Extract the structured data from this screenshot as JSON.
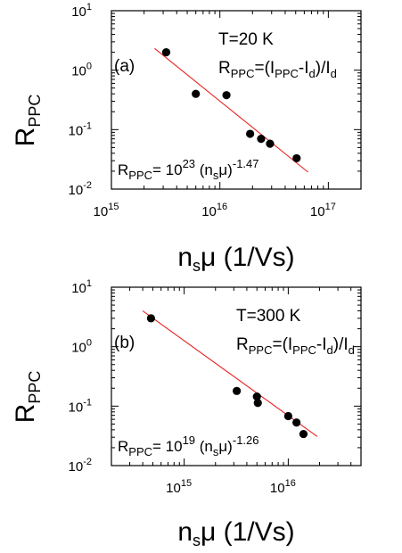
{
  "chart_data": [
    {
      "type": "scatter",
      "panel_label": "(a)",
      "xlabel": {
        "main": "n",
        "sub": "s",
        "rest": "μ (1/Vs)"
      },
      "ylabel": {
        "main": "R",
        "sub": "PPC"
      },
      "x_scale": "log",
      "y_scale": "log",
      "xlim": [
        1000000000000000.0,
        2e+17
      ],
      "ylim": [
        0.01,
        10
      ],
      "x_ticks": [
        {
          "value": 1000000000000000.0,
          "base": "10",
          "exp": "15"
        },
        {
          "value": 1e+16,
          "base": "10",
          "exp": "16"
        },
        {
          "value": 1e+17,
          "base": "10",
          "exp": "17"
        }
      ],
      "y_ticks": [
        {
          "value": 10,
          "base": "10",
          "exp": "1"
        },
        {
          "value": 1,
          "base": "10",
          "exp": "0"
        },
        {
          "value": 0.1,
          "base": "10",
          "exp": "-1"
        },
        {
          "value": 0.01,
          "base": "10",
          "exp": "-2"
        }
      ],
      "points": [
        {
          "x": 3200000000000000.0,
          "y": 2.0
        },
        {
          "x": 6000000000000000.0,
          "y": 0.4
        },
        {
          "x": 1.15e+16,
          "y": 0.38
        },
        {
          "x": 1.9e+16,
          "y": 0.085
        },
        {
          "x": 2.4e+16,
          "y": 0.07
        },
        {
          "x": 2.9e+16,
          "y": 0.058
        },
        {
          "x": 5.1e+16,
          "y": 0.033
        }
      ],
      "fit": {
        "prefactor": 1e+23,
        "exponent": -1.47,
        "x_from": 2500000000000000.0,
        "x_to": 6.5e+16
      },
      "annotations": {
        "temperature": "T=20 K",
        "definition": {
          "r": "R",
          "r_sub": "PPC",
          "open": "=(I",
          "i_sub": "PPC",
          "mid": "-I",
          "d_sub": "d",
          "close": ")/I",
          "d_sub2": "d"
        },
        "fit_label": {
          "r": "R",
          "r_sub": "PPC",
          "eq": "= 10",
          "coef_exp": "23",
          "paren": "(n",
          "n_sub": "s",
          "mu": "μ)",
          "exp": "-1.47"
        }
      }
    },
    {
      "type": "scatter",
      "panel_label": "(b)",
      "xlabel": {
        "main": "n",
        "sub": "s",
        "rest": "μ (1/Vs)"
      },
      "ylabel": {
        "main": "R",
        "sub": "PPC"
      },
      "x_scale": "log",
      "y_scale": "log",
      "xlim": [
        200000000000000.0,
        5e+16
      ],
      "ylim": [
        0.01,
        10
      ],
      "x_ticks": [
        {
          "value": 1000000000000000.0,
          "base": "10",
          "exp": "15"
        },
        {
          "value": 1e+16,
          "base": "10",
          "exp": "16"
        }
      ],
      "y_ticks": [
        {
          "value": 10,
          "base": "10",
          "exp": "1"
        },
        {
          "value": 1,
          "base": "10",
          "exp": "0"
        },
        {
          "value": 0.1,
          "base": "10",
          "exp": "-1"
        },
        {
          "value": 0.01,
          "base": "10",
          "exp": "-2"
        }
      ],
      "points": [
        {
          "x": 480000000000000.0,
          "y": 3.0
        },
        {
          "x": 3200000000000000.0,
          "y": 0.18
        },
        {
          "x": 5000000000000000.0,
          "y": 0.145
        },
        {
          "x": 5100000000000000.0,
          "y": 0.113
        },
        {
          "x": 1e+16,
          "y": 0.068
        },
        {
          "x": 1.2e+16,
          "y": 0.053
        },
        {
          "x": 1.4e+16,
          "y": 0.034
        }
      ],
      "fit": {
        "prefactor": 1e+19,
        "exponent": -1.26,
        "x_from": 400000000000000.0,
        "x_to": 1.9e+16
      },
      "annotations": {
        "temperature": "T=300 K",
        "definition": {
          "r": "R",
          "r_sub": "PPC",
          "open": "=(I",
          "i_sub": "PPC",
          "mid": "-I",
          "d_sub": "d",
          "close": ")/I",
          "d_sub2": "d"
        },
        "fit_label": {
          "r": "R",
          "r_sub": "PPC",
          "eq": "= 10",
          "coef_exp": "19",
          "paren": "(n",
          "n_sub": "s",
          "mu": "μ)",
          "exp": "-1.26"
        }
      }
    }
  ]
}
